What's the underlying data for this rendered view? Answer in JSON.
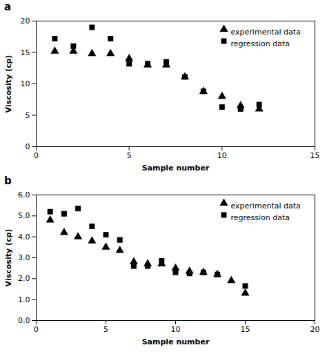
{
  "chart_data": [
    {
      "type": "scatter",
      "title": "a",
      "xlabel": "Sample number",
      "ylabel": "Viscosity (cp)",
      "xlim": [
        0,
        15
      ],
      "ylim": [
        0,
        20
      ],
      "xticks": [
        0,
        5,
        10,
        15
      ],
      "yticks": [
        0,
        5,
        10,
        15,
        20
      ],
      "grid": false,
      "legend": "upper right",
      "series": [
        {
          "name": "experimental data",
          "color": "black",
          "marker": "triangle",
          "x": [
            1,
            2,
            3,
            4,
            5,
            6,
            7,
            8,
            9,
            10,
            11,
            12
          ],
          "values": [
            15.2,
            15.2,
            14.8,
            14.8,
            14.0,
            13.0,
            13.0,
            11.1,
            8.8,
            8.0,
            6.5,
            6.0
          ]
        },
        {
          "name": "regression data",
          "color": "black",
          "marker": "square",
          "x": [
            1,
            2,
            3,
            4,
            5,
            6,
            7,
            8,
            9,
            10,
            11,
            12
          ],
          "values": [
            17.2,
            16.0,
            19.0,
            17.2,
            13.2,
            13.2,
            13.5,
            11.1,
            8.8,
            6.3,
            6.0,
            6.7
          ]
        }
      ]
    },
    {
      "type": "scatter",
      "title": "b",
      "xlabel": "Sample number",
      "ylabel": "Viscosity (cp)",
      "xlim": [
        0,
        20
      ],
      "ylim": [
        0,
        6
      ],
      "xticks": [
        0,
        5,
        10,
        15,
        20
      ],
      "yticks": [
        0,
        1,
        2,
        3,
        4,
        5,
        6
      ],
      "grid": false,
      "legend": "upper right",
      "series": [
        {
          "name": "experimental data",
          "color": "black",
          "marker": "triangle",
          "x": [
            1,
            2,
            3,
            4,
            5,
            6,
            7,
            8,
            9,
            10,
            11,
            12,
            13,
            14,
            15
          ],
          "values": [
            4.8,
            4.2,
            4.0,
            3.8,
            3.5,
            3.35,
            2.8,
            2.7,
            2.7,
            2.5,
            2.35,
            2.3,
            2.2,
            1.9,
            1.3
          ]
        },
        {
          "name": "regression data",
          "color": "black",
          "marker": "square",
          "x": [
            1,
            2,
            3,
            4,
            5,
            6,
            7,
            8,
            9,
            10,
            11,
            12,
            13,
            15
          ],
          "values": [
            5.2,
            5.1,
            5.35,
            4.5,
            4.1,
            3.85,
            2.6,
            2.6,
            2.85,
            2.3,
            2.25,
            2.3,
            2.2,
            1.65
          ]
        }
      ]
    }
  ]
}
